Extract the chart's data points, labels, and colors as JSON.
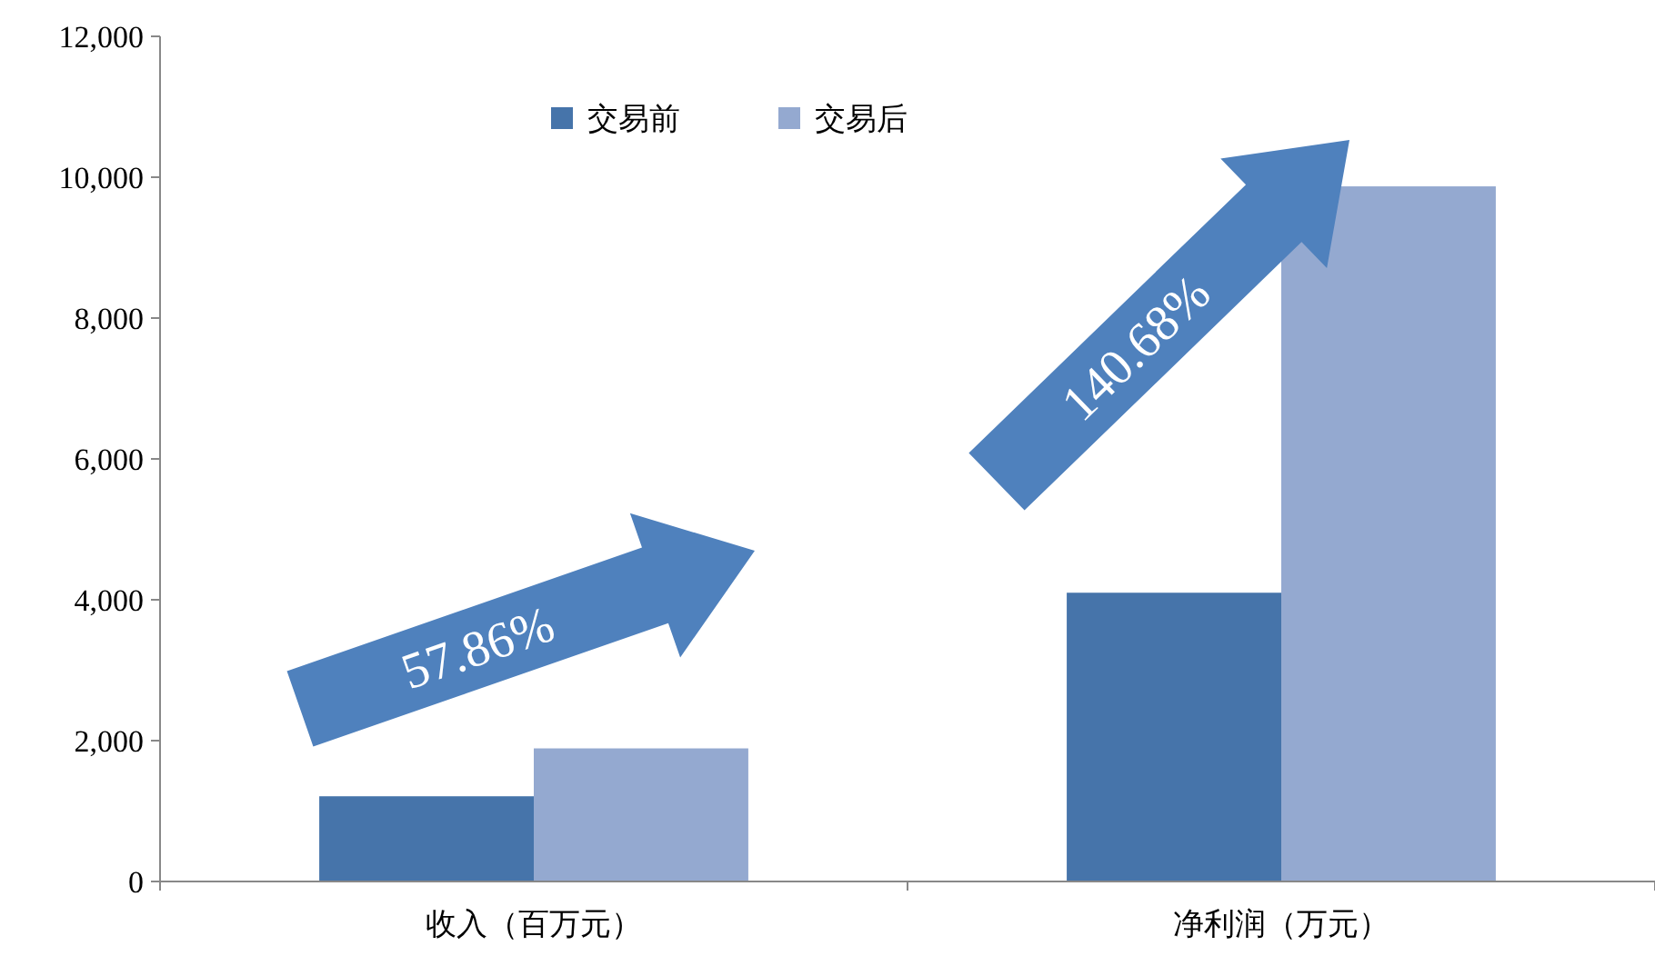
{
  "chart_data": {
    "type": "bar",
    "categories": [
      "收入（百万元）",
      "净利润（万元）"
    ],
    "series": [
      {
        "name": "交易前",
        "color": "#4674aa",
        "values": [
          1210,
          4100
        ]
      },
      {
        "name": "交易后",
        "color": "#94a9d0",
        "values": [
          1890,
          9870
        ]
      }
    ],
    "ylim": [
      0,
      12000
    ],
    "yticks": [
      {
        "value": 0,
        "label": "0"
      },
      {
        "value": 2000,
        "label": "2,000"
      },
      {
        "value": 4000,
        "label": "4,000"
      },
      {
        "value": 6000,
        "label": "6,000"
      },
      {
        "value": 8000,
        "label": "8,000"
      },
      {
        "value": 10000,
        "label": "10,000"
      },
      {
        "value": 12000,
        "label": "12,000"
      }
    ],
    "legend": "top",
    "grid": false,
    "annotations": [
      "57.86%",
      "140.68%"
    ]
  }
}
